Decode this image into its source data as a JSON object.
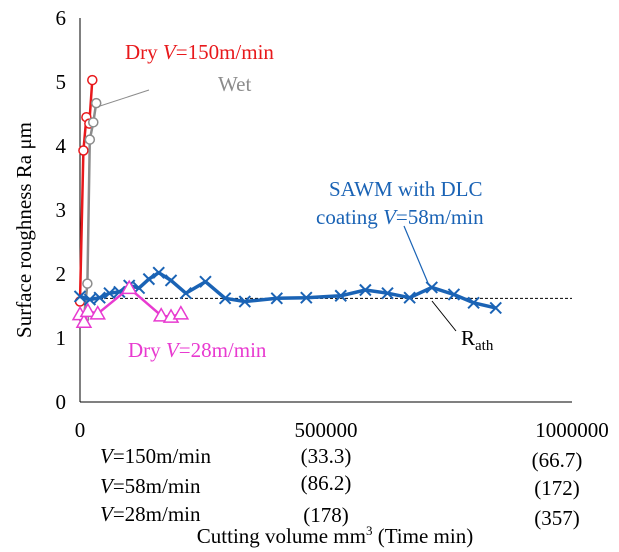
{
  "chart_data": {
    "type": "line",
    "ylabel": "Surface roughness Ra μm",
    "xlabel": {
      "main": "Cutting volume mm",
      "sup": "3",
      "tail": " (Time min)"
    },
    "ylim": [
      0,
      6
    ],
    "xlim": [
      0,
      1000000
    ],
    "yticks": [
      "0",
      "1",
      "2",
      "3",
      "4",
      "5",
      "6"
    ],
    "xticks": [
      {
        "value": 0,
        "label": "0"
      },
      {
        "value": 500000,
        "label": "500000"
      },
      {
        "value": 1000000,
        "label": "1000000"
      }
    ],
    "time_rows": [
      {
        "label": "=150m/min",
        "t500k": "(33.3)",
        "t1m": "(66.7)"
      },
      {
        "label": "=58m/min",
        "t500k": "(86.2)",
        "t1m": "(172)"
      },
      {
        "label": "=28m/min",
        "t500k": "(178)",
        "t1m": "(357)"
      }
    ],
    "rath": {
      "value": 1.62,
      "label": "R",
      "sub": "ath"
    },
    "series": [
      {
        "name": "Dry V=150m/min",
        "color": "#e8191c",
        "marker": "circle",
        "x": [
          0,
          7000,
          13000,
          19000,
          25000
        ],
        "y": [
          1.57,
          3.93,
          4.45,
          4.35,
          5.03
        ]
      },
      {
        "name": "Wet",
        "color": "#8c8c8c",
        "marker": "circle",
        "x": [
          8000,
          15000,
          20000,
          27000,
          33000
        ],
        "y": [
          1.3,
          1.85,
          4.1,
          4.37,
          4.67
        ]
      },
      {
        "name": "SAWM with DLC coating V=58m/min",
        "color": "#1a63b5",
        "marker": "x",
        "x": [
          0,
          20000,
          40000,
          60000,
          80000,
          100000,
          120000,
          140000,
          160000,
          185000,
          215000,
          255000,
          295000,
          335000,
          400000,
          460000,
          530000,
          580000,
          625000,
          670000,
          715000,
          760000,
          800000,
          845000
        ],
        "y": [
          1.65,
          1.6,
          1.63,
          1.7,
          1.72,
          1.82,
          1.78,
          1.92,
          2.02,
          1.9,
          1.7,
          1.88,
          1.62,
          1.57,
          1.62,
          1.63,
          1.66,
          1.75,
          1.7,
          1.63,
          1.79,
          1.68,
          1.55,
          1.47
        ]
      },
      {
        "name": "Dry V=28m/min",
        "color": "#e83ad0",
        "marker": "triangle",
        "x": [
          0,
          8000,
          16000,
          36000,
          100000,
          165000,
          185000,
          205000
        ],
        "y": [
          1.37,
          1.25,
          1.42,
          1.38,
          1.78,
          1.35,
          1.33,
          1.38
        ]
      }
    ],
    "annotations": [
      {
        "series": "Dry V=150m/min",
        "pre": "Dry ",
        "italic": "V",
        "post": "=150m/min",
        "color": "#e8191c"
      },
      {
        "series": "Wet",
        "pre": "Wet",
        "italic": "",
        "post": "",
        "color": "#8c8c8c"
      },
      {
        "series": "SAWM line 1",
        "pre": "SAWM with DLC",
        "italic": "",
        "post": "",
        "color": "#1a63b5"
      },
      {
        "series": "SAWM line 2",
        "pre": "coating ",
        "italic": "V",
        "post": "=58m/min",
        "color": "#1a63b5"
      },
      {
        "series": "Dry V=28m/min",
        "pre": "Dry ",
        "italic": "V",
        "post": "=28m/min",
        "color": "#e83ad0"
      }
    ]
  }
}
